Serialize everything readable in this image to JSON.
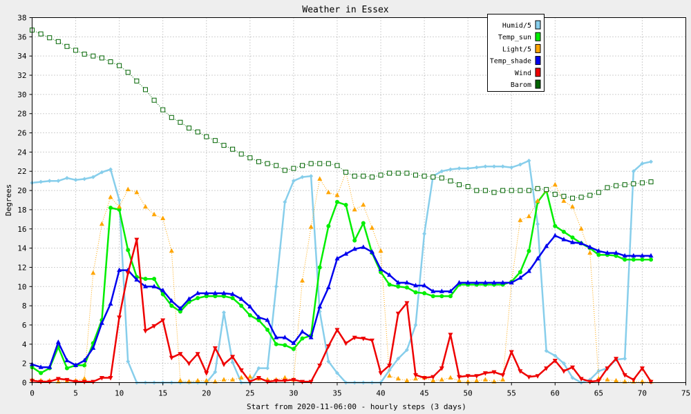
{
  "chart_data": {
    "type": "line",
    "title": "Weather in Essex",
    "xlabel": "Start from 2020-11-06:00 - hourly steps (3 days)",
    "ylabel": "Degrees",
    "xlim": [
      0,
      75
    ],
    "ylim": [
      0,
      38
    ],
    "x_ticks": [
      0,
      5,
      10,
      15,
      20,
      25,
      30,
      35,
      40,
      45,
      50,
      55,
      60,
      65,
      70,
      75
    ],
    "y_ticks": [
      0,
      2,
      4,
      6,
      8,
      10,
      12,
      14,
      16,
      18,
      20,
      22,
      24,
      26,
      28,
      30,
      32,
      34,
      36,
      38
    ],
    "grid": true,
    "legend_position": "top-right",
    "series": [
      {
        "name": "Humid/5",
        "color": "#87ceeb",
        "marker": "diamond",
        "line": "solid",
        "values": [
          20.8,
          20.9,
          21.0,
          21.0,
          21.3,
          21.1,
          21.2,
          21.4,
          21.9,
          22.2,
          19.0,
          2.2,
          0,
          0,
          0,
          0,
          0,
          0,
          0,
          0,
          0,
          1.1,
          7.3,
          2.1,
          0,
          0,
          1.5,
          1.5,
          10,
          18.8,
          21.0,
          21.4,
          21.5,
          7.4,
          2.2,
          1.0,
          0,
          0,
          0,
          0,
          0,
          1.3,
          2.5,
          3.4,
          6.0,
          15.5,
          21.5,
          22.0,
          22.2,
          22.3,
          22.3,
          22.4,
          22.5,
          22.5,
          22.5,
          22.4,
          22.7,
          23.1,
          16.5,
          3.3,
          2.8,
          2.0,
          0.5,
          0,
          0.3,
          1.2,
          1.5,
          2.4,
          2.5,
          22.0,
          22.8,
          23.0
        ]
      },
      {
        "name": "Temp_sun",
        "color": "#00ee00",
        "marker": "circle",
        "line": "solid",
        "values": [
          1.6,
          1.0,
          1.5,
          3.7,
          1.5,
          1.8,
          1.8,
          4.1,
          6.5,
          18.2,
          18.0,
          13.8,
          11.0,
          10.8,
          10.8,
          9.2,
          8.0,
          7.4,
          8.4,
          8.8,
          9.0,
          9.0,
          9.0,
          8.8,
          8.0,
          7.0,
          6.5,
          5.5,
          4.0,
          3.9,
          3.5,
          4.6,
          4.9,
          12.0,
          16.3,
          18.8,
          18.5,
          14.8,
          16.6,
          13.5,
          11.5,
          10.2,
          10.0,
          9.9,
          9.4,
          9.3,
          9.0,
          9.0,
          9.0,
          10.2,
          10.2,
          10.2,
          10.2,
          10.2,
          10.2,
          10.5,
          11.5,
          13.7,
          18.8,
          20.0,
          16.3,
          15.7,
          15.1,
          14.5,
          14.0,
          13.3,
          13.3,
          13.2,
          12.8,
          12.8,
          12.8,
          12.8
        ]
      },
      {
        "name": "Light/5",
        "color": "#ffa500",
        "marker": "triangle-up",
        "line": "dotted",
        "values": [
          0.3,
          0.2,
          0.2,
          0.1,
          0.2,
          0.2,
          0.4,
          11.4,
          16.5,
          19.3,
          18.3,
          20.1,
          19.8,
          18.3,
          17.5,
          17.1,
          13.7,
          0.2,
          0.1,
          0.2,
          0.2,
          0.1,
          0.3,
          0.3,
          0.5,
          0.6,
          0.4,
          0.3,
          0.3,
          0.5,
          0.3,
          10.6,
          16.2,
          21.2,
          19.8,
          19.5,
          21.9,
          18.0,
          18.5,
          16.1,
          13.7,
          0.7,
          0.4,
          0.2,
          0.4,
          0.5,
          0.2,
          0.3,
          0.5,
          0.2,
          0.1,
          0.2,
          0.3,
          0.1,
          0.3,
          10.4,
          16.9,
          17.3,
          18.9,
          20.0,
          20.6,
          18.9,
          18.3,
          16.0,
          13.5,
          0.4,
          0.3,
          0.2,
          0.1,
          0.1,
          0.1,
          0.1
        ]
      },
      {
        "name": "Temp_shade",
        "color": "#0000ee",
        "marker": "triangle-up",
        "line": "solid",
        "values": [
          1.9,
          1.6,
          1.6,
          4.2,
          2.3,
          1.8,
          2.3,
          3.6,
          6.2,
          8.2,
          11.7,
          11.7,
          10.7,
          10.0,
          10.0,
          9.6,
          8.5,
          7.7,
          8.7,
          9.3,
          9.3,
          9.3,
          9.3,
          9.2,
          8.7,
          7.9,
          6.8,
          6.5,
          4.7,
          4.7,
          4.1,
          5.3,
          4.7,
          7.9,
          9.9,
          12.9,
          13.4,
          13.9,
          14.1,
          13.6,
          11.8,
          11.2,
          10.4,
          10.4,
          10.1,
          10.1,
          9.5,
          9.5,
          9.5,
          10.4,
          10.4,
          10.4,
          10.4,
          10.4,
          10.4,
          10.4,
          10.9,
          11.6,
          12.9,
          14.2,
          15.3,
          14.9,
          14.6,
          14.5,
          14.1,
          13.7,
          13.5,
          13.5,
          13.2,
          13.2,
          13.2,
          13.2
        ]
      },
      {
        "name": "Wind",
        "color": "#ee0000",
        "marker": "triangle-down",
        "line": "solid",
        "values": [
          0.2,
          0.1,
          0.1,
          0.4,
          0.3,
          0.1,
          0.1,
          0.1,
          0.5,
          0.5,
          6.8,
          11.4,
          14.9,
          5.4,
          5.9,
          6.5,
          2.6,
          3.0,
          2.0,
          3.0,
          1.0,
          3.6,
          1.9,
          2.7,
          1.3,
          0.1,
          0.5,
          0.1,
          0.2,
          0.2,
          0.3,
          0.1,
          0.1,
          1.8,
          3.8,
          5.5,
          4.1,
          4.7,
          4.6,
          4.4,
          1.0,
          1.8,
          7.2,
          8.3,
          0.8,
          0.5,
          0.6,
          1.5,
          5.0,
          0.6,
          0.7,
          0.7,
          1.0,
          1.1,
          0.8,
          3.2,
          1.2,
          0.6,
          0.7,
          1.5,
          2.3,
          1.2,
          1.6,
          0.4,
          0.1,
          0.2,
          1.5,
          2.5,
          0.8,
          0.3,
          1.5,
          0.1
        ]
      },
      {
        "name": "Barom",
        "color": "#006400",
        "marker": "square-open",
        "line": "dotted",
        "values": [
          36.7,
          36.3,
          35.9,
          35.5,
          35.0,
          34.6,
          34.2,
          34.0,
          33.8,
          33.4,
          33.0,
          32.3,
          31.4,
          30.5,
          29.4,
          28.4,
          27.6,
          27.1,
          26.5,
          26.1,
          25.6,
          25.2,
          24.7,
          24.3,
          23.8,
          23.4,
          23.0,
          22.8,
          22.6,
          22.1,
          22.3,
          22.6,
          22.8,
          22.8,
          22.8,
          22.6,
          21.9,
          21.5,
          21.5,
          21.4,
          21.6,
          21.8,
          21.8,
          21.8,
          21.6,
          21.5,
          21.4,
          21.3,
          21.0,
          20.6,
          20.4,
          20.0,
          20.0,
          19.8,
          20.0,
          20.0,
          20.0,
          20.0,
          20.2,
          20.1,
          19.6,
          19.4,
          19.2,
          19.3,
          19.5,
          19.8,
          20.3,
          20.5,
          20.6,
          20.7,
          20.8,
          20.9
        ]
      }
    ]
  }
}
